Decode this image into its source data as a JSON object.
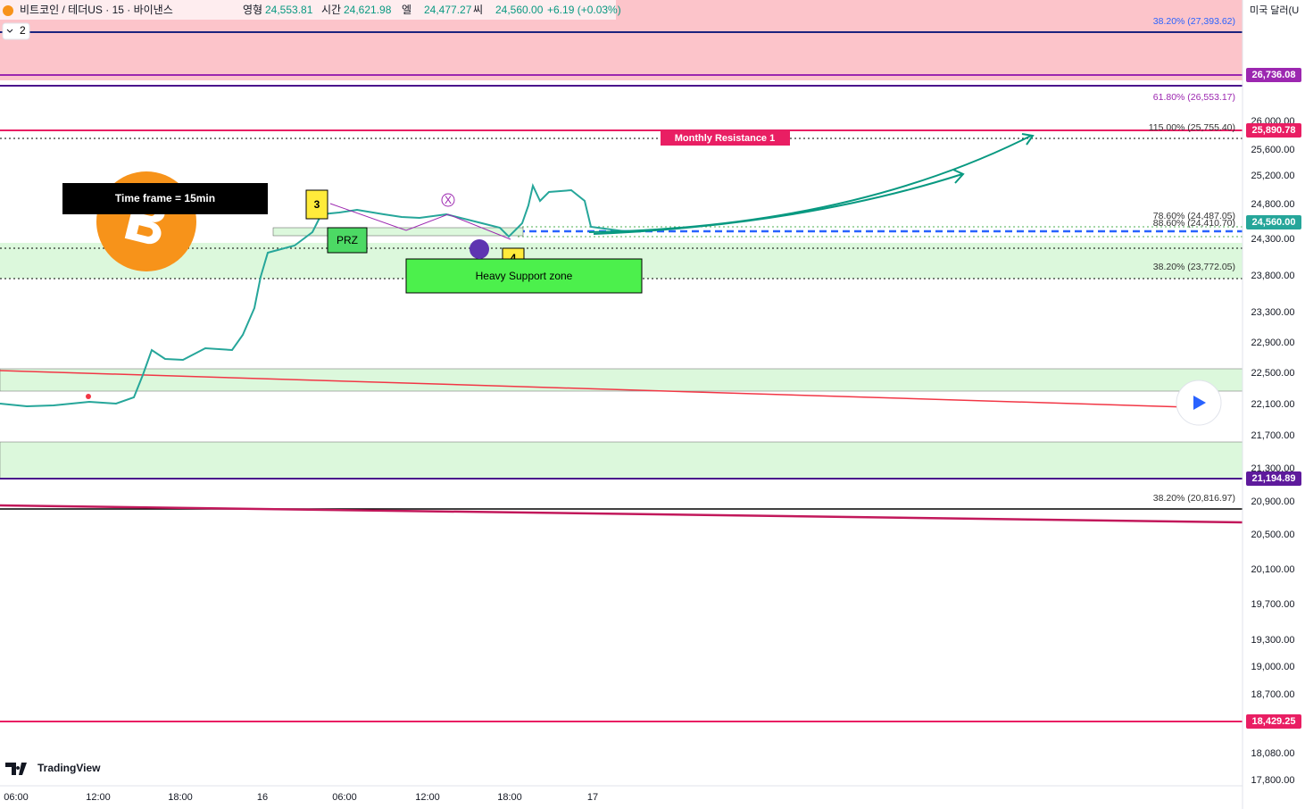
{
  "header": {
    "symbol": "비트코인 / 테더US · 15 · 바이낸스",
    "fields": [
      {
        "label": "영형",
        "value": "24,553.81"
      },
      {
        "label": "시간",
        "value": "24,621.98"
      },
      {
        "label": "엘",
        "value": "24,477.27"
      },
      {
        "label": "씨",
        "value": "24,560.00"
      }
    ],
    "change": "+6.19 (+0.03%)",
    "indicators": "2"
  },
  "currency": "미국 달러(U",
  "price_axis": [
    "26,000.00",
    "25,600.00",
    "25,200.00",
    "24,800.00",
    "24,300.00",
    "23,800.00",
    "23,300.00",
    "22,900.00",
    "22,500.00",
    "22,100.00",
    "21,700.00",
    "21,300.00",
    "20,900.00",
    "20,500.00",
    "20,100.00",
    "19,700.00",
    "19,300.00",
    "19,000.00",
    "18,700.00",
    "18,080.00",
    "17,800.00"
  ],
  "price_tags": [
    "26,736.08",
    "25,890.78",
    "24,560.00",
    "21,194.89",
    "18,429.25"
  ],
  "fib_labels": [
    "38.20% (27,393.62)",
    "61.80% (26,553.17)",
    "115.00% (25,755.40)",
    "78.60% (24,487.05)",
    "88.60% (24,410.70)",
    "38.20% (23,772.05)",
    "38.20% (20,816.97)"
  ],
  "time_axis": [
    "06:00",
    "12:00",
    "18:00",
    "16",
    "06:00",
    "12:00",
    "18:00",
    "17"
  ],
  "annotations": {
    "timeframe": "Time frame = 15min",
    "resistance": "Monthly Resistance 1",
    "prz": "PRZ",
    "support": "Heavy Support zone",
    "point3": "3",
    "point4": "4",
    "pointx": "X"
  },
  "brand": "TradingView"
}
